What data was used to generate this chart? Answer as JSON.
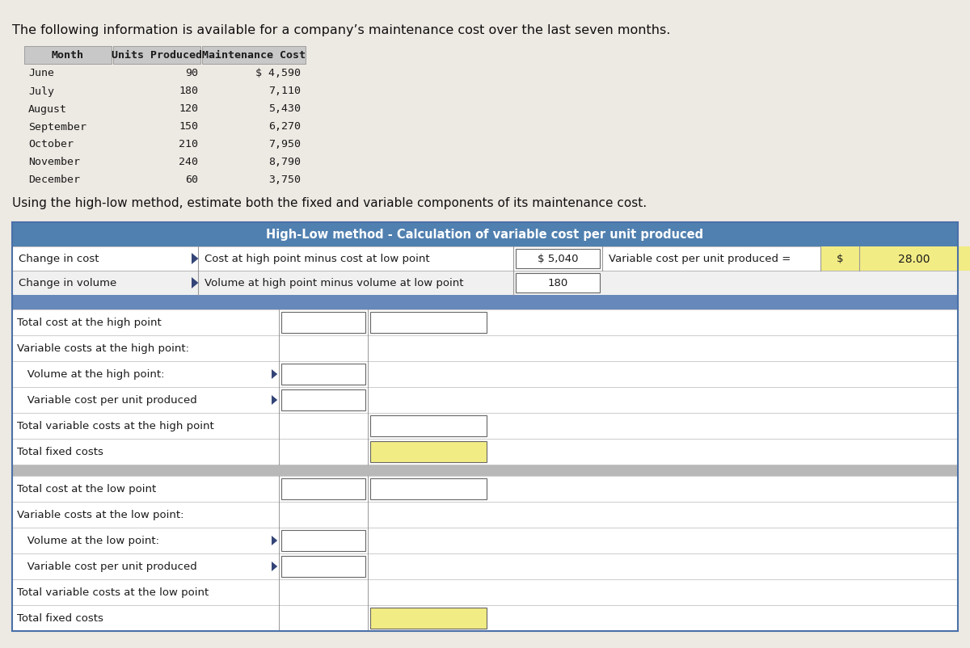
{
  "title_text": "The following information is available for a company’s maintenance cost over the last seven months.",
  "table1_headers": [
    "Month",
    "Units Produced",
    "Maintenance Cost"
  ],
  "table1_rows": [
    [
      "June",
      "90",
      "$ 4,590"
    ],
    [
      "July",
      "180",
      "7,110"
    ],
    [
      "August",
      "120",
      "5,430"
    ],
    [
      "September",
      "150",
      "6,270"
    ],
    [
      "October",
      "210",
      "7,950"
    ],
    [
      "November",
      "240",
      "8,790"
    ],
    [
      "December",
      "60",
      "3,750"
    ]
  ],
  "instruction_text": "Using the high-low method, estimate both the fixed and variable components of its maintenance cost.",
  "section_title": "High-Low method - Calculation of variable cost per unit produced",
  "calc_rows": [
    {
      "label": "Change in cost",
      "description": "Cost at high point minus cost at low point",
      "value": "$ 5,040",
      "result_label": "Variable cost per unit produced =",
      "result_dollar": "$",
      "result_value": "28.00"
    },
    {
      "label": "Change in volume",
      "description": "Volume at high point minus volume at low point",
      "value": "180",
      "result_label": "",
      "result_dollar": "",
      "result_value": ""
    }
  ],
  "high_point_rows": [
    {
      "label": "Total cost at the high point",
      "indent": 0,
      "has_arrow": false,
      "col_b_box": true,
      "col_c_box": true,
      "col_c_yellow": false
    },
    {
      "label": "Variable costs at the high point:",
      "indent": 0,
      "has_arrow": false,
      "col_b_box": false,
      "col_c_box": false,
      "col_c_yellow": false
    },
    {
      "label": "   Volume at the high point:",
      "indent": 1,
      "has_arrow": true,
      "col_b_box": true,
      "col_c_box": false,
      "col_c_yellow": false
    },
    {
      "label": "   Variable cost per unit produced",
      "indent": 1,
      "has_arrow": true,
      "col_b_box": true,
      "col_c_box": false,
      "col_c_yellow": false
    },
    {
      "label": "Total variable costs at the high point",
      "indent": 0,
      "has_arrow": false,
      "col_b_box": false,
      "col_c_box": true,
      "col_c_yellow": false
    },
    {
      "label": "Total fixed costs",
      "indent": 0,
      "has_arrow": false,
      "col_b_box": false,
      "col_c_box": true,
      "col_c_yellow": true
    }
  ],
  "low_point_rows": [
    {
      "label": "Total cost at the low point",
      "indent": 0,
      "has_arrow": false,
      "col_b_box": true,
      "col_c_box": true,
      "col_c_yellow": false
    },
    {
      "label": "Variable costs at the low point:",
      "indent": 0,
      "has_arrow": false,
      "col_b_box": false,
      "col_c_box": false,
      "col_c_yellow": false
    },
    {
      "label": "   Volume at the low point:",
      "indent": 1,
      "has_arrow": true,
      "col_b_box": true,
      "col_c_box": false,
      "col_c_yellow": false
    },
    {
      "label": "   Variable cost per unit produced",
      "indent": 1,
      "has_arrow": true,
      "col_b_box": true,
      "col_c_box": false,
      "col_c_yellow": false
    },
    {
      "label": "Total variable costs at the low point",
      "indent": 0,
      "has_arrow": false,
      "col_b_box": false,
      "col_c_box": false,
      "col_c_yellow": false
    },
    {
      "label": "Total fixed costs",
      "indent": 0,
      "has_arrow": false,
      "col_b_box": false,
      "col_c_box": true,
      "col_c_yellow": true
    }
  ],
  "bg_color": "#ede9e3",
  "header_blue": "#5080b0",
  "row_white": "#ffffff",
  "row_light": "#f0f0f0",
  "yellow_fill": "#f2ec84",
  "divider_blue": "#6688bb",
  "gray_divider": "#b8b8b8",
  "border_dark": "#555555",
  "text_color": "#1a1a1a",
  "section_border": "#4a70a8"
}
